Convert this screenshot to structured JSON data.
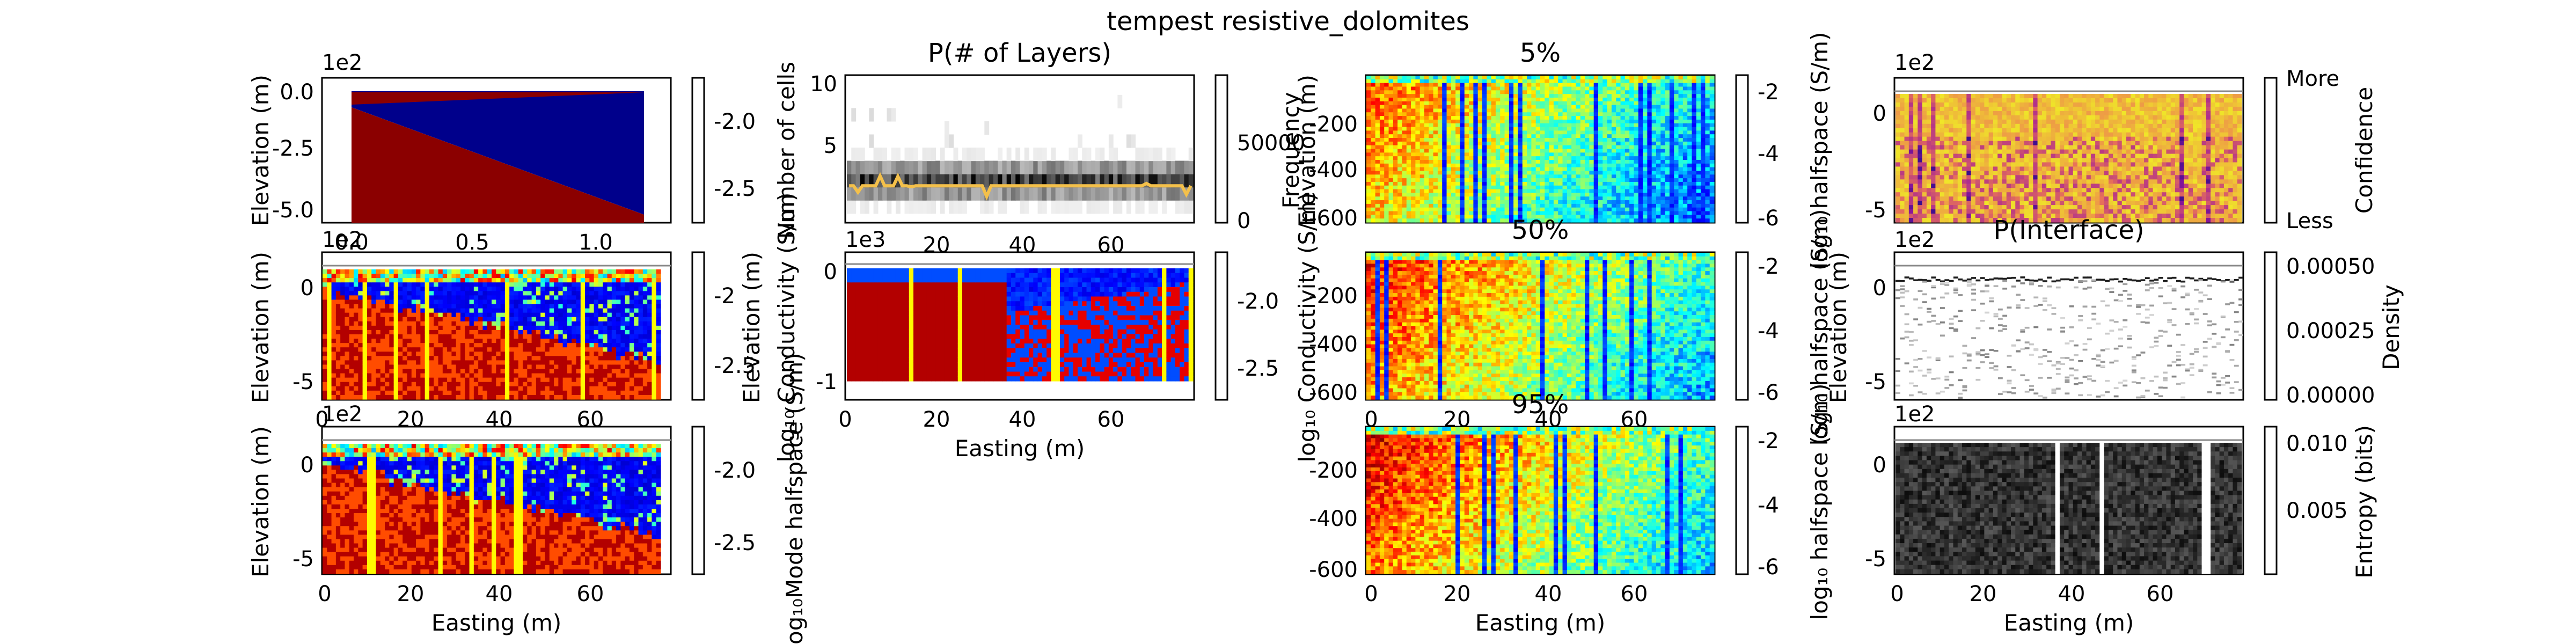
{
  "figure": {
    "suptitle": "tempest resistive_dolomites"
  },
  "colors": {
    "dry_blue": "#00008b",
    "wet_red": "#8b0000",
    "median_line": "#f4c04a",
    "hist_gray": "#555555"
  },
  "chart_data": [
    {
      "id": "true-model",
      "type": "heatmap",
      "title": "",
      "xlabel": "",
      "ylabel": "Elevation (m)",
      "offset_y": "1e2",
      "xticks": [
        "0.0",
        "0.5",
        "1.0"
      ],
      "yticks": [
        "0.0",
        "-2.5",
        "-5.0"
      ],
      "xlim": [
        0.0,
        1.2
      ],
      "ylim": [
        -5.3,
        0.5
      ],
      "colorbar": {
        "ticks": [
          "-2.0",
          "-2.5"
        ],
        "label": "",
        "colormap": "jet"
      }
    },
    {
      "id": "n-layers",
      "type": "heatmap",
      "title": "P(# of Layers)",
      "xlabel": "",
      "ylabel": "Number of cells",
      "xticks": [
        "20",
        "40",
        "60"
      ],
      "yticks": [
        "10",
        "5"
      ],
      "xlim": [
        0,
        77
      ],
      "ylim": [
        0,
        11
      ],
      "colorbar": {
        "ticks": [
          "50000",
          "0"
        ],
        "label": "Frequency",
        "colormap": "gray"
      }
    },
    {
      "id": "pct-5",
      "type": "heatmap",
      "title": "5%",
      "xlabel": "",
      "ylabel": "Elevation (m)",
      "xticks": [
        "0",
        "20",
        "40",
        "60"
      ],
      "yticks": [
        "-200",
        "-400",
        "-600"
      ],
      "colorbar": {
        "ticks": [
          "-2",
          "-4",
          "-6"
        ],
        "label": "log₁₀ halfspace (S/m)",
        "colormap": "jet"
      }
    },
    {
      "id": "confidence",
      "type": "heatmap",
      "title": "",
      "xlabel": "",
      "ylabel": "",
      "offset_y": "1e2",
      "yticks": [
        "0",
        "-5"
      ],
      "colorbar": {
        "ticks": [
          "More",
          "Less"
        ],
        "label": "Confidence",
        "colormap": "plasma"
      }
    },
    {
      "id": "best-model",
      "type": "heatmap",
      "title": "",
      "xlabel": "",
      "ylabel": "Elevation (m)",
      "offset_y": "1e2",
      "xticks": [
        "0",
        "20",
        "40",
        "60"
      ],
      "yticks": [
        "0",
        "-5"
      ],
      "colorbar": {
        "ticks": [
          "-2",
          "-2.5"
        ],
        "label": "",
        "colormap": "jet"
      }
    },
    {
      "id": "mean-model",
      "type": "heatmap",
      "title": "",
      "xlabel": "Easting (m)",
      "ylabel": "Elevation (m)",
      "ylabel2": "log₁₀ Conductivity (S/m)",
      "offset_y": "1e3",
      "xticks": [
        "0",
        "20",
        "40",
        "60"
      ],
      "yticks": [
        "0",
        "-1"
      ],
      "colorbar": {
        "ticks": [
          "-2.0",
          "-2.5"
        ],
        "label": "",
        "colormap": "jet"
      }
    },
    {
      "id": "pct-50",
      "type": "heatmap",
      "title": "50%",
      "xlabel": "",
      "ylabel": "log₁₀ Conductivity (S/m)",
      "xticks": [
        "0",
        "20",
        "40",
        "60"
      ],
      "yticks": [
        "-200",
        "-400",
        "-600"
      ],
      "colorbar": {
        "ticks": [
          "-2",
          "-4",
          "-6"
        ],
        "label": "log₁₀ halfspace (S/m)",
        "colormap": "jet"
      }
    },
    {
      "id": "p-interface",
      "type": "heatmap",
      "title": "P(Interface)",
      "xlabel": "",
      "ylabel": "Elevation (m)",
      "offset_y": "1e2",
      "yticks": [
        "0",
        "-5"
      ],
      "colorbar": {
        "ticks": [
          "0.00050",
          "0.00025",
          "0.00000"
        ],
        "label": "Density",
        "colormap": "gray_r"
      }
    },
    {
      "id": "mode-model",
      "type": "heatmap",
      "title": "",
      "xlabel": "Easting (m)",
      "ylabel": "Elevation (m)",
      "offset_y": "1e2",
      "xticks": [
        "0",
        "20",
        "40",
        "60"
      ],
      "yticks": [
        "0",
        "-5"
      ],
      "colorbar": {
        "ticks": [
          "-2.0",
          "-2.5"
        ],
        "label": "log₁₀Mode halfspace (S/m)",
        "colormap": "jet"
      }
    },
    {
      "id": "pct-95",
      "type": "heatmap",
      "title": "95%",
      "xlabel": "Easting (m)",
      "ylabel": "",
      "xticks": [
        "0",
        "20",
        "40",
        "60"
      ],
      "yticks": [
        "-200",
        "-400",
        "-600"
      ],
      "colorbar": {
        "ticks": [
          "-2",
          "-4",
          "-6"
        ],
        "label": "log₁₀ halfspace (S/m)",
        "colormap": "jet"
      }
    },
    {
      "id": "entropy",
      "type": "heatmap",
      "title": "",
      "xlabel": "Easting (m)",
      "ylabel": "",
      "offset_y": "1e2",
      "xticks": [
        "0",
        "20",
        "40",
        "60"
      ],
      "yticks": [
        "0",
        "-5"
      ],
      "colorbar": {
        "ticks": [
          "0.010",
          "0.005"
        ],
        "label": "Entropy (bits)",
        "colormap": "gray_r"
      }
    }
  ]
}
